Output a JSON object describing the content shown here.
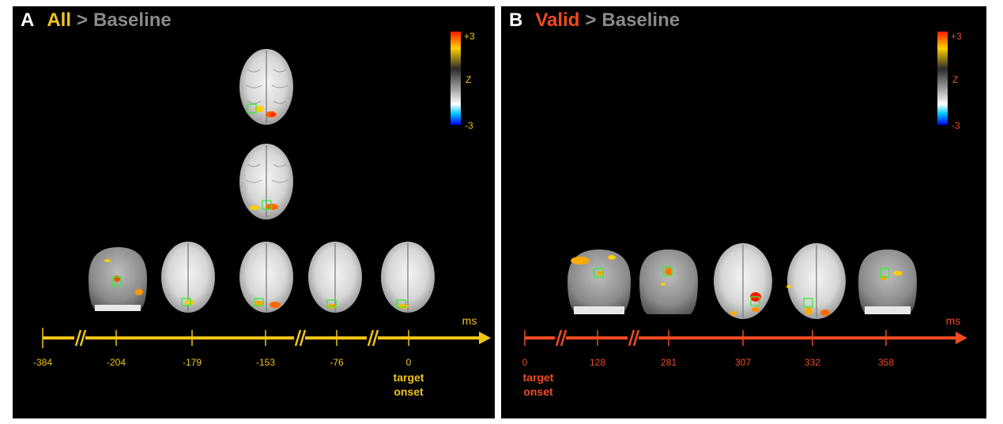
{
  "panel_a": {
    "letter": "A",
    "condition": "All",
    "separator": ">",
    "baseline": "Baseline",
    "accent": "#f0c419",
    "colorbar": {
      "top_label": "+3",
      "mid_label": "Z",
      "bottom_label": "-3"
    },
    "axis_unit": "ms",
    "ticks": [
      "-384",
      "-204",
      "-179",
      "-153",
      "-76",
      "0"
    ],
    "onset_label": [
      "target",
      "onset"
    ]
  },
  "panel_b": {
    "letter": "B",
    "condition": "Valid",
    "separator": ">",
    "baseline": "Baseline",
    "accent": "#f04a22",
    "colorbar": {
      "top_label": "+3",
      "mid_label": "Z",
      "bottom_label": "-3"
    },
    "axis_unit": "ms",
    "ticks": [
      "0",
      "128",
      "281",
      "307",
      "332",
      "358"
    ],
    "onset_label": [
      "target",
      "onset"
    ]
  }
}
